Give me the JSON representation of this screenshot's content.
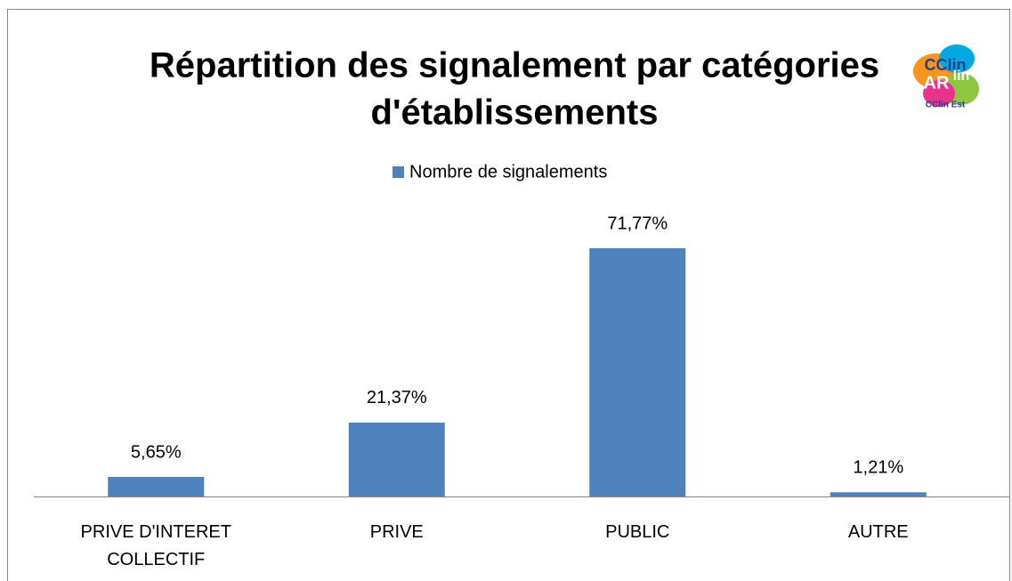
{
  "chart_data": {
    "type": "bar",
    "title": [
      "Répartition des signalement par catégories",
      "d'établissements"
    ],
    "categories": [
      "PRIVE D'INTERET COLLECTIF",
      "PRIVE",
      "PUBLIC",
      "AUTRE"
    ],
    "series": [
      {
        "name": "Nombre de signalements",
        "color": "#4f81bd",
        "values": [
          5.65,
          21.37,
          71.77,
          1.21
        ],
        "value_labels": [
          "5,65%",
          "21,37%",
          "71,77%",
          "1,21%"
        ]
      }
    ],
    "legend": "top",
    "logo": [
      "CClin",
      "AR",
      "lin",
      "CClin Est"
    ]
  }
}
